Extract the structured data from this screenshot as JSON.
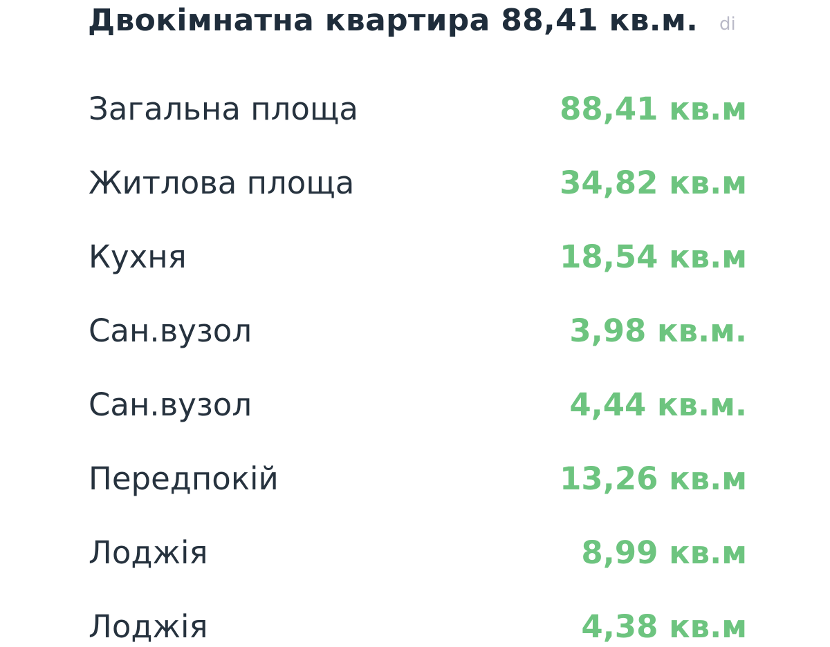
{
  "title": "Двокімнатна квартира 88,41 кв.м.",
  "watermark": "di",
  "colors": {
    "label": "#26323e",
    "value": "#6dc47f",
    "title": "#1f2d3b"
  },
  "rows": [
    {
      "label": "Загальна площа",
      "value": "88,41 кв.м"
    },
    {
      "label": "Житлова площа",
      "value": "34,82 кв.м"
    },
    {
      "label": "Кухня",
      "value": "18,54 кв.м"
    },
    {
      "label": "Сан.вузол",
      "value": "3,98 кв.м."
    },
    {
      "label": "Сан.вузол",
      "value": "4,44 кв.м."
    },
    {
      "label": "Передпокій",
      "value": "13,26 кв.м"
    },
    {
      "label": "Лоджія",
      "value": "8,99 кв.м"
    },
    {
      "label": "Лоджія",
      "value": "4,38 кв.м"
    }
  ]
}
